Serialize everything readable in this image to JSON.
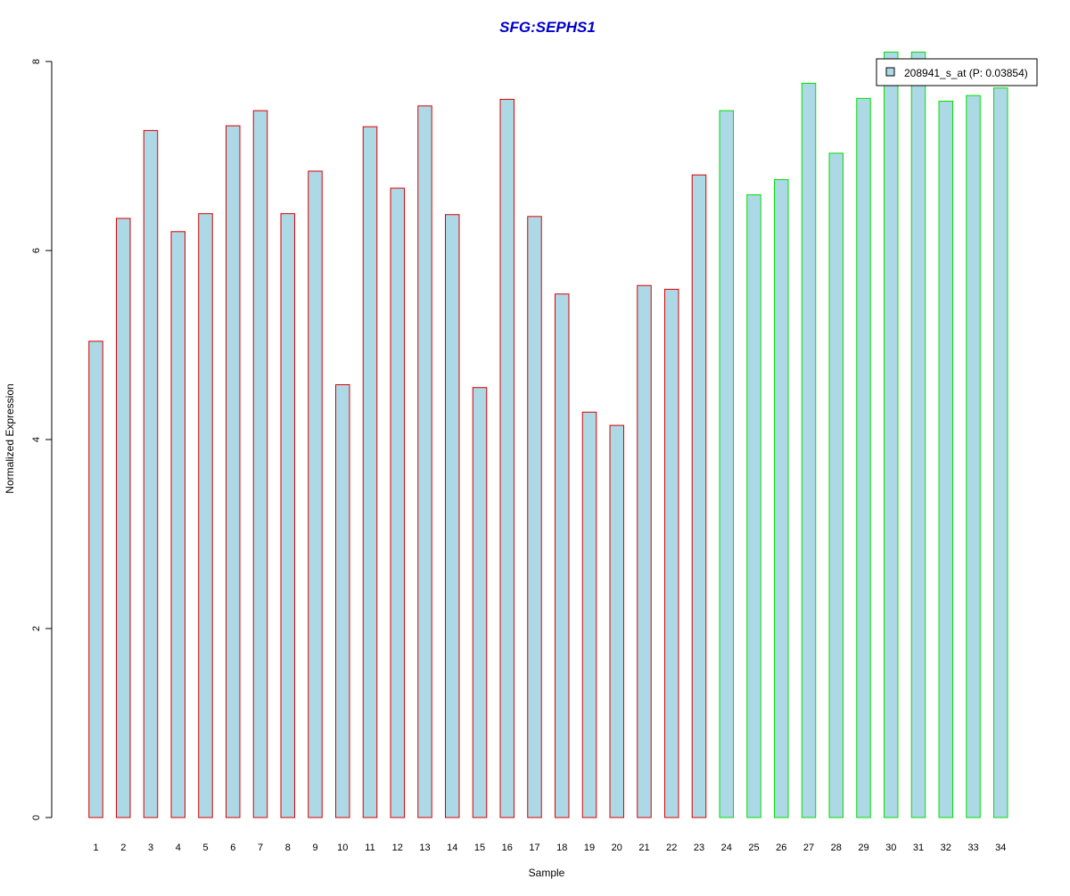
{
  "chart_data": {
    "type": "bar",
    "title": "SFG:SEPHS1",
    "xlabel": "Sample",
    "ylabel": "Normalized Expression",
    "ylim": [
      0,
      8
    ],
    "yticks": [
      "0",
      "2",
      "4",
      "6",
      "8"
    ],
    "grid": false,
    "categories": [
      "1",
      "2",
      "3",
      "4",
      "5",
      "6",
      "7",
      "8",
      "9",
      "10",
      "11",
      "12",
      "13",
      "14",
      "15",
      "16",
      "17",
      "18",
      "19",
      "20",
      "21",
      "22",
      "23",
      "24",
      "25",
      "26",
      "27",
      "28",
      "29",
      "30",
      "31",
      "32",
      "33",
      "34"
    ],
    "values": [
      5.04,
      6.34,
      7.27,
      6.2,
      6.39,
      7.32,
      7.48,
      6.39,
      6.84,
      4.58,
      7.31,
      6.66,
      7.53,
      6.38,
      4.55,
      7.6,
      6.36,
      5.54,
      4.29,
      4.15,
      5.63,
      5.59,
      6.8,
      7.48,
      6.59,
      6.75,
      7.77,
      7.03,
      7.61,
      8.1,
      8.1,
      7.58,
      7.64,
      7.72
    ],
    "groups": [
      "a",
      "a",
      "a",
      "a",
      "a",
      "a",
      "a",
      "a",
      "a",
      "a",
      "a",
      "a",
      "a",
      "a",
      "a",
      "a",
      "a",
      "a",
      "a",
      "a",
      "a",
      "a",
      "a",
      "b",
      "b",
      "b",
      "b",
      "b",
      "b",
      "b",
      "b",
      "b",
      "b",
      "b"
    ],
    "colors": {
      "fill": "#add8e6",
      "border_group_a": "#dd0000",
      "border_group_b": "#00e000",
      "title": "#0000cc",
      "axis": "#000000"
    },
    "legend": {
      "position": "top-right",
      "label": "208941_s_at (P: 0.03854)"
    }
  }
}
